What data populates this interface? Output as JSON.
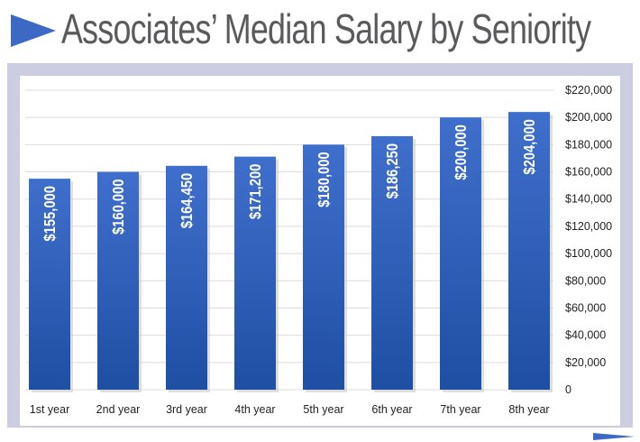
{
  "header": {
    "title": "Associates’ Median Salary by Seniority"
  },
  "colors": {
    "bar_top": "#3f6fcc",
    "bar_bottom": "#1f4fa3",
    "title_arrow": "#3d68c4",
    "frame": "#cccde0"
  },
  "chart_data": {
    "type": "bar",
    "title": "Associates’ Median Salary by Seniority",
    "xlabel": "",
    "ylabel": "",
    "categories": [
      "1st year",
      "2nd year",
      "3rd year",
      "4th year",
      "5th year",
      "6th year",
      "7th year",
      "8th year"
    ],
    "values": [
      155000,
      160000,
      164450,
      171200,
      180000,
      186250,
      200000,
      204000
    ],
    "data_labels": [
      "$155,000",
      "$160,000",
      "$164,450",
      "$171,200",
      "$180,000",
      "$186,250",
      "$200,000",
      "$204,000"
    ],
    "y_ticks": [
      0,
      20000,
      40000,
      60000,
      80000,
      100000,
      120000,
      140000,
      160000,
      180000,
      200000,
      220000
    ],
    "y_tick_labels": [
      "0",
      "$20,000",
      "$40,000",
      "$60,000",
      "$80,000",
      "$100,000",
      "$120,000",
      "$140,000",
      "$160,000",
      "$180,000",
      "$200,000",
      "$220,000"
    ],
    "ylim": [
      0,
      220000
    ],
    "grid": true,
    "y_axis_side": "right",
    "data_label_orientation": "vertical"
  }
}
